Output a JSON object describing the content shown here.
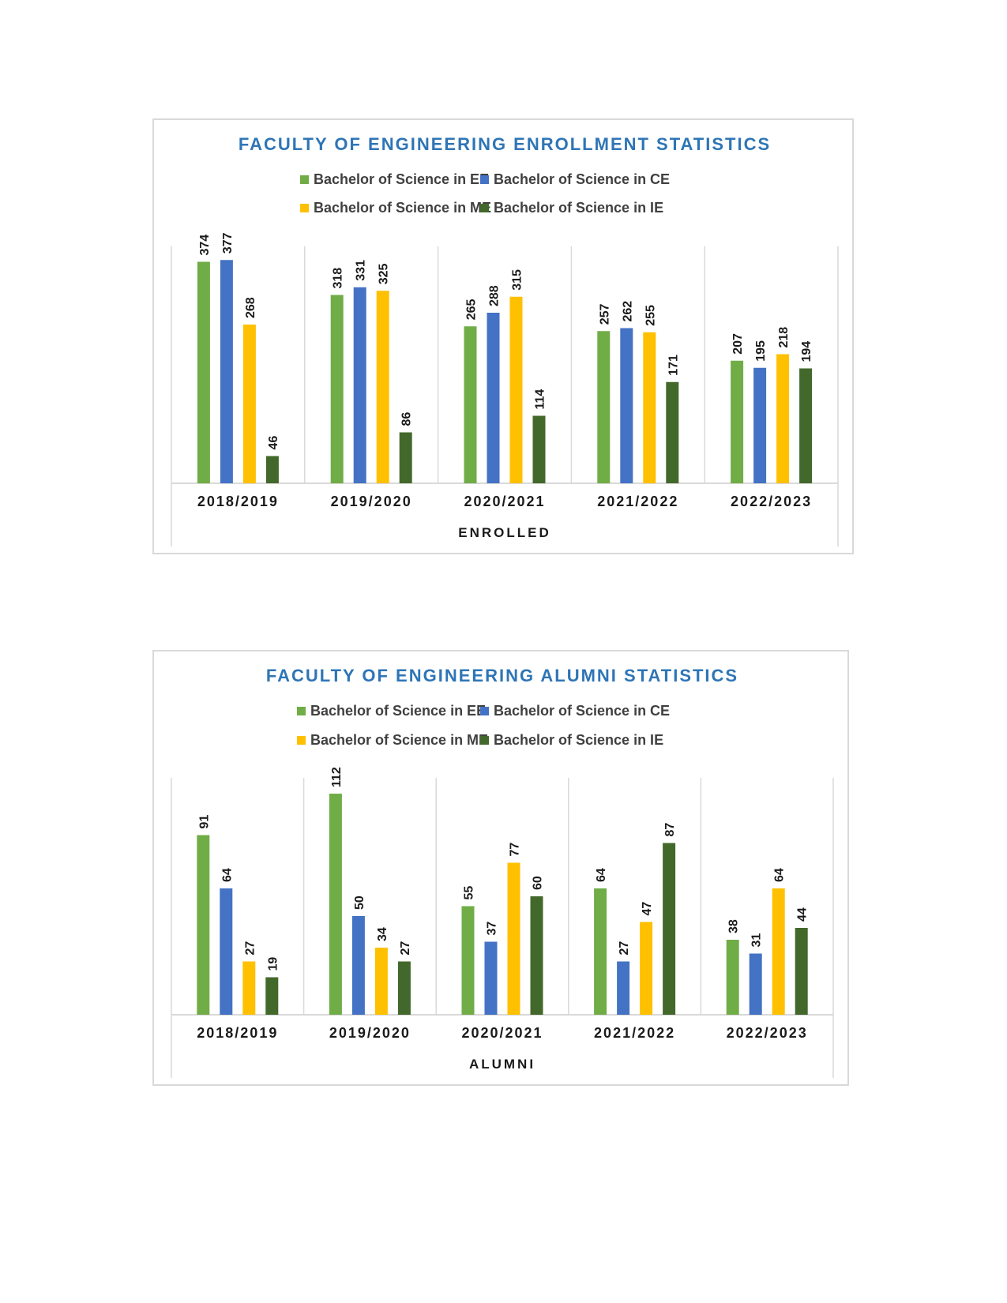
{
  "chart_data": [
    {
      "type": "bar",
      "title": "FACULTY OF ENGINEERING ENROLLMENT STATISTICS",
      "xlabel": "ENROLLED",
      "ylabel": "",
      "categories": [
        "2018/2019",
        "2019/2020",
        "2020/2021",
        "2021/2022",
        "2022/2023"
      ],
      "series": [
        {
          "name": "Bachelor of Science in EE",
          "color": "#70ad47",
          "values": [
            374,
            318,
            265,
            257,
            207
          ]
        },
        {
          "name": "Bachelor of Science in CE",
          "color": "#4472c4",
          "values": [
            377,
            331,
            288,
            262,
            195
          ]
        },
        {
          "name": "Bachelor of Science in ME",
          "color": "#ffc000",
          "values": [
            268,
            325,
            315,
            255,
            218
          ]
        },
        {
          "name": "Bachelor of Science in IE",
          "color": "#43682b",
          "values": [
            46,
            86,
            114,
            171,
            194
          ]
        }
      ],
      "ylim": [
        0,
        400
      ],
      "grid": false,
      "legend_position": "top",
      "data_labels": true,
      "title_color": "#2e75b6"
    },
    {
      "type": "bar",
      "title": "FACULTY OF ENGINEERING ALUMNI STATISTICS",
      "xlabel": "ALUMNI",
      "ylabel": "",
      "categories": [
        "2018/2019",
        "2019/2020",
        "2020/2021",
        "2021/2022",
        "2022/2023"
      ],
      "series": [
        {
          "name": "Bachelor of Science in EE",
          "color": "#70ad47",
          "values": [
            91,
            112,
            55,
            64,
            38
          ]
        },
        {
          "name": "Bachelor of Science in CE",
          "color": "#4472c4",
          "values": [
            64,
            50,
            37,
            27,
            31
          ]
        },
        {
          "name": "Bachelor of Science in ME",
          "color": "#ffc000",
          "values": [
            27,
            34,
            77,
            47,
            64
          ]
        },
        {
          "name": "Bachelor of Science in IE",
          "color": "#43682b",
          "values": [
            19,
            27,
            60,
            87,
            44
          ]
        }
      ],
      "ylim": [
        0,
        120
      ],
      "grid": false,
      "legend_position": "top",
      "data_labels": true,
      "title_color": "#2e75b6"
    }
  ]
}
